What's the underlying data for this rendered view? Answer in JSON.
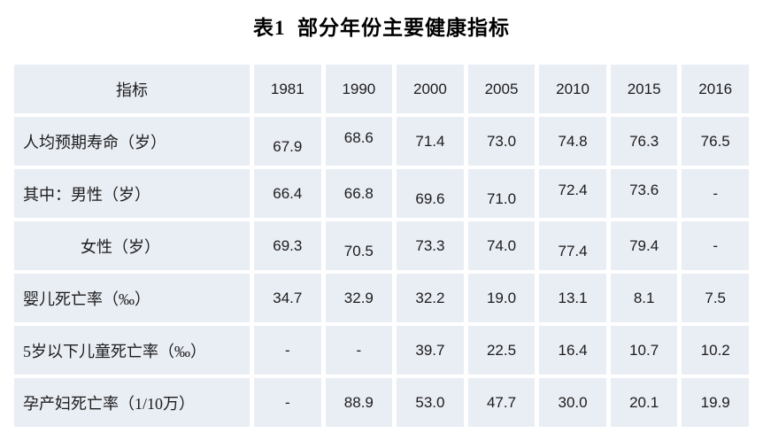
{
  "page": {
    "title": "表1  部分年份主要健康指标"
  },
  "table": {
    "columns": [
      "指标",
      "1981",
      "1990",
      "2000",
      "2005",
      "2010",
      "2015",
      "2016"
    ],
    "rows": [
      {
        "label": "人均预期寿命（岁）",
        "indent": false,
        "values": [
          "67.9",
          "68.6",
          "71.4",
          "73.0",
          "74.8",
          "76.3",
          "76.5"
        ]
      },
      {
        "label": "其中：男性（岁）",
        "indent": false,
        "values": [
          "66.4",
          "66.8",
          "69.6",
          "71.0",
          "72.4",
          "73.6",
          "-"
        ]
      },
      {
        "label": "女性（岁）",
        "indent": true,
        "values": [
          "69.3",
          "70.5",
          "73.3",
          "74.0",
          "77.4",
          "79.4",
          "-"
        ]
      },
      {
        "label": "婴儿死亡率（‰）",
        "indent": false,
        "values": [
          "34.7",
          "32.9",
          "32.2",
          "19.0",
          "13.1",
          "8.1",
          "7.5"
        ]
      },
      {
        "label": "5岁以下儿童死亡率（‰）",
        "indent": false,
        "values": [
          "-",
          "-",
          "39.7",
          "22.5",
          "16.4",
          "10.7",
          "10.2"
        ]
      },
      {
        "label": "孕产妇死亡率（1/10万）",
        "indent": false,
        "values": [
          "-",
          "88.9",
          "53.0",
          "47.7",
          "30.0",
          "20.1",
          "19.9"
        ]
      }
    ],
    "colors": {
      "cell_bg": "#e9edf4",
      "gap": "#ffffff",
      "text": "#1c1c1c"
    }
  },
  "chart_data": {
    "type": "table",
    "title": "表1 部分年份主要健康指标",
    "categories": [
      "1981",
      "1990",
      "2000",
      "2005",
      "2010",
      "2015",
      "2016"
    ],
    "series": [
      {
        "name": "人均预期寿命（岁）",
        "values": [
          67.9,
          68.6,
          71.4,
          73.0,
          74.8,
          76.3,
          76.5
        ]
      },
      {
        "name": "其中：男性（岁）",
        "values": [
          66.4,
          66.8,
          69.6,
          71.0,
          72.4,
          73.6,
          null
        ]
      },
      {
        "name": "女性（岁）",
        "values": [
          69.3,
          70.5,
          73.3,
          74.0,
          77.4,
          79.4,
          null
        ]
      },
      {
        "name": "婴儿死亡率（‰）",
        "values": [
          34.7,
          32.9,
          32.2,
          19.0,
          13.1,
          8.1,
          7.5
        ]
      },
      {
        "name": "5岁以下儿童死亡率（‰）",
        "values": [
          null,
          null,
          39.7,
          22.5,
          16.4,
          10.7,
          10.2
        ]
      },
      {
        "name": "孕产妇死亡率（1/10万）",
        "values": [
          null,
          88.9,
          53.0,
          47.7,
          30.0,
          20.1,
          19.9
        ]
      }
    ]
  }
}
